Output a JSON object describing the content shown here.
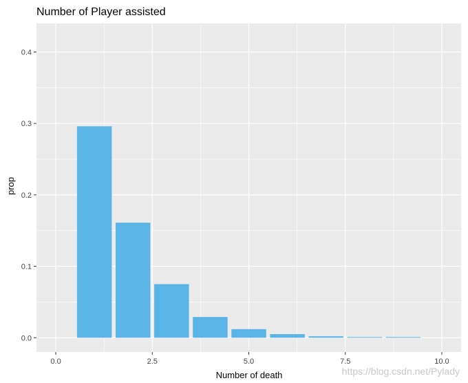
{
  "chart_data": {
    "type": "bar",
    "title": "Number of Player assisted",
    "xlabel": "Number of death",
    "ylabel": "prop",
    "x": [
      1,
      2,
      3,
      4,
      5,
      6,
      7,
      8,
      9
    ],
    "values": [
      0.296,
      0.161,
      0.075,
      0.029,
      0.012,
      0.005,
      0.002,
      0.001,
      0.001
    ],
    "xlim": [
      -0.5,
      10.5
    ],
    "ylim": [
      -0.02,
      0.44
    ],
    "x_ticks": [
      0,
      2.5,
      5,
      7.5,
      10
    ],
    "x_tick_labels": [
      "0.0",
      "2.5",
      "5.0",
      "7.5",
      "10.0"
    ],
    "y_ticks": [
      0,
      0.1,
      0.2,
      0.3,
      0.4
    ],
    "y_tick_labels": [
      "0.0",
      "0.1",
      "0.2",
      "0.3",
      "0.4"
    ],
    "grid": true,
    "legend": "none",
    "colors": {
      "bar": "#5ab4e5",
      "panel": "#ebebeb",
      "grid": "#ffffff"
    }
  },
  "watermark": "https://blog.csdn.net/Pylady"
}
